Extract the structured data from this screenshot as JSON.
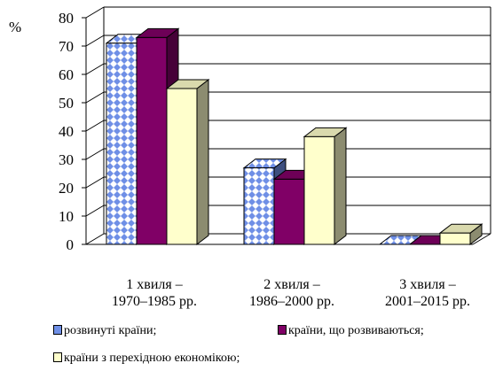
{
  "chart_data": {
    "type": "bar",
    "style": "3d-clustered-column",
    "unit_label": "%",
    "categories": [
      [
        "1 хвиля –",
        "1970–1985 рр."
      ],
      [
        "2 хвиля –",
        "1986–2000 рр."
      ],
      [
        "3 хвиля –",
        "2001–2015 рр."
      ]
    ],
    "series": [
      {
        "name": "розвинуті країни;",
        "values": [
          71,
          27,
          0
        ],
        "color": "#6f8fe6",
        "pattern": "blue-diamond"
      },
      {
        "name": "країни, що розвиваються;",
        "values": [
          73,
          23,
          0
        ],
        "color": "#800066"
      },
      {
        "name": "країни з перехідною економікою;",
        "values": [
          55,
          38,
          4
        ],
        "color": "#ffffcc"
      }
    ],
    "ylim": [
      0,
      80
    ],
    "yticks": [
      0,
      10,
      20,
      30,
      40,
      50,
      60,
      70,
      80
    ],
    "grid": true,
    "legend_position": "bottom"
  }
}
